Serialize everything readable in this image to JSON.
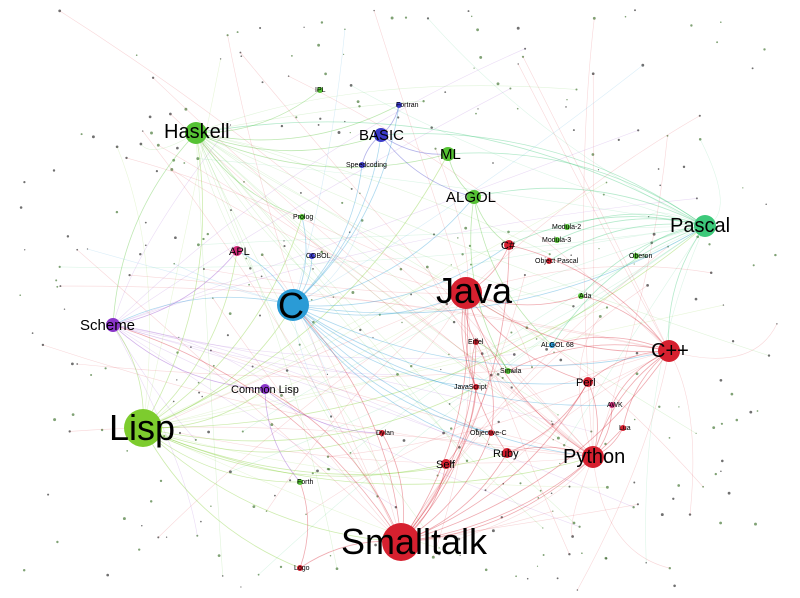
{
  "graph": {
    "type": "network",
    "nodes": [
      {
        "id": "lisp",
        "label": "Lisp",
        "size": "xl",
        "color": "#7dcc2e",
        "tier": 1
      },
      {
        "id": "smalltalk",
        "label": "Smalltalk",
        "size": "xl",
        "color": "#d6202f",
        "tier": 1
      },
      {
        "id": "c",
        "label": "C",
        "size": "l",
        "color": "#2a9bd6",
        "tier": 1
      },
      {
        "id": "java",
        "label": "Java",
        "size": "l",
        "color": "#d6202f",
        "tier": 1
      },
      {
        "id": "pascal",
        "label": "Pascal",
        "size": "m",
        "color": "#3dc97a",
        "tier": 2
      },
      {
        "id": "cpp",
        "label": "C++",
        "size": "m",
        "color": "#d6202f",
        "tier": 2
      },
      {
        "id": "haskell",
        "label": "Haskell",
        "size": "m",
        "color": "#55c234",
        "tier": 2
      },
      {
        "id": "python",
        "label": "Python",
        "size": "m",
        "color": "#d6202f",
        "tier": 2
      },
      {
        "id": "scheme",
        "label": "Scheme",
        "size": "s",
        "color": "#8a35c9",
        "tier": 3
      },
      {
        "id": "basic",
        "label": "BASIC",
        "size": "s",
        "color": "#3a3ac9",
        "tier": 3
      },
      {
        "id": "ml",
        "label": "ML",
        "size": "s",
        "color": "#55c234",
        "tier": 3
      },
      {
        "id": "algol",
        "label": "ALGOL",
        "size": "s",
        "color": "#55c234",
        "tier": 3
      },
      {
        "id": "csharp",
        "label": "C#",
        "size": "xs",
        "color": "#d6202f",
        "tier": 4
      },
      {
        "id": "apl",
        "label": "APL",
        "size": "xs",
        "color": "#d12a7a",
        "tier": 4
      },
      {
        "id": "perl",
        "label": "Perl",
        "size": "xs",
        "color": "#d6202f",
        "tier": 4
      },
      {
        "id": "commonlisp",
        "label": "Common Lisp",
        "size": "xs",
        "color": "#8a35c9",
        "tier": 4
      },
      {
        "id": "ruby",
        "label": "Ruby",
        "size": "xs",
        "color": "#d6202f",
        "tier": 4
      },
      {
        "id": "self",
        "label": "Self",
        "size": "xs",
        "color": "#d6202f",
        "tier": 4
      },
      {
        "id": "fortran",
        "label": "Fortran",
        "size": "xxs",
        "color": "#3a3ac9",
        "tier": 5
      },
      {
        "id": "javascript",
        "label": "JavaScript",
        "size": "xxs",
        "color": "#d6202f",
        "tier": 5
      },
      {
        "id": "objectivec",
        "label": "Objective-C",
        "size": "xxs",
        "color": "#d6202f",
        "tier": 5
      },
      {
        "id": "eiffel",
        "label": "Eiffel",
        "size": "xxs",
        "color": "#d6202f",
        "tier": 5
      },
      {
        "id": "ada",
        "label": "Ada",
        "size": "xxs",
        "color": "#55c234",
        "tier": 5
      },
      {
        "id": "prolog",
        "label": "Prolog",
        "size": "xxs",
        "color": "#55c234",
        "tier": 5
      },
      {
        "id": "forth",
        "label": "Forth",
        "size": "xxs",
        "color": "#55c234",
        "tier": 5
      },
      {
        "id": "logo",
        "label": "Logo",
        "size": "xxs",
        "color": "#d6202f",
        "tier": 5
      },
      {
        "id": "algol68",
        "label": "ALGOL 68",
        "size": "xxs",
        "color": "#2a9bd6",
        "tier": 5
      },
      {
        "id": "awk",
        "label": "AWK",
        "size": "xxs",
        "color": "#d12a7a",
        "tier": 5
      },
      {
        "id": "simula",
        "label": "Simula",
        "size": "xxs",
        "color": "#55c234",
        "tier": 5
      },
      {
        "id": "modula2",
        "label": "Modula-2",
        "size": "xxs",
        "color": "#55c234",
        "tier": 5
      },
      {
        "id": "modula3",
        "label": "Modula-3",
        "size": "xxs",
        "color": "#55c234",
        "tier": 5
      },
      {
        "id": "speedcoding",
        "label": "Speedcoding",
        "size": "xxs",
        "color": "#3a3ac9",
        "tier": 5
      },
      {
        "id": "objectpascal",
        "label": "Object Pascal",
        "size": "xxs",
        "color": "#d6202f",
        "tier": 5
      },
      {
        "id": "oberon",
        "label": "Oberon",
        "size": "xxs",
        "color": "#55c234",
        "tier": 5
      },
      {
        "id": "cobol",
        "label": "COBOL",
        "size": "xxs",
        "color": "#3a3ac9",
        "tier": 5
      },
      {
        "id": "dylan",
        "label": "Dylan",
        "size": "xxs",
        "color": "#d6202f",
        "tier": 5
      },
      {
        "id": "lua",
        "label": "Lua",
        "size": "xxs",
        "color": "#d6202f",
        "tier": 5
      },
      {
        "id": "ipl",
        "label": "IPL",
        "size": "xxs",
        "color": "#55c234",
        "tier": 5
      }
    ],
    "edges": [
      [
        "lisp",
        "scheme"
      ],
      [
        "lisp",
        "commonlisp"
      ],
      [
        "lisp",
        "smalltalk"
      ],
      [
        "lisp",
        "haskell"
      ],
      [
        "lisp",
        "ml"
      ],
      [
        "lisp",
        "c"
      ],
      [
        "lisp",
        "logo"
      ],
      [
        "lisp",
        "forth"
      ],
      [
        "lisp",
        "self"
      ],
      [
        "lisp",
        "python"
      ],
      [
        "lisp",
        "ruby"
      ],
      [
        "lisp",
        "javascript"
      ],
      [
        "lisp",
        "dylan"
      ],
      [
        "lisp",
        "apl"
      ],
      [
        "lisp",
        "prolog"
      ],
      [
        "lisp",
        "pascal"
      ],
      [
        "smalltalk",
        "java"
      ],
      [
        "smalltalk",
        "python"
      ],
      [
        "smalltalk",
        "ruby"
      ],
      [
        "smalltalk",
        "self"
      ],
      [
        "smalltalk",
        "objectivec"
      ],
      [
        "smalltalk",
        "cpp"
      ],
      [
        "smalltalk",
        "perl"
      ],
      [
        "smalltalk",
        "logo"
      ],
      [
        "smalltalk",
        "javascript"
      ],
      [
        "smalltalk",
        "eiffel"
      ],
      [
        "smalltalk",
        "c"
      ],
      [
        "smalltalk",
        "scheme"
      ],
      [
        "smalltalk",
        "csharp"
      ],
      [
        "smalltalk",
        "lua"
      ],
      [
        "smalltalk",
        "commonlisp"
      ],
      [
        "smalltalk",
        "dylan"
      ],
      [
        "c",
        "java"
      ],
      [
        "c",
        "cpp"
      ],
      [
        "c",
        "python"
      ],
      [
        "c",
        "perl"
      ],
      [
        "c",
        "csharp"
      ],
      [
        "c",
        "javascript"
      ],
      [
        "c",
        "objectivec"
      ],
      [
        "c",
        "basic"
      ],
      [
        "c",
        "algol"
      ],
      [
        "c",
        "awk"
      ],
      [
        "c",
        "pascal"
      ],
      [
        "c",
        "scheme"
      ],
      [
        "c",
        "apl"
      ],
      [
        "c",
        "prolog"
      ],
      [
        "c",
        "fortran"
      ],
      [
        "c",
        "cobol"
      ],
      [
        "c",
        "ruby"
      ],
      [
        "c",
        "speedcoding"
      ],
      [
        "java",
        "cpp"
      ],
      [
        "java",
        "csharp"
      ],
      [
        "java",
        "python"
      ],
      [
        "java",
        "javascript"
      ],
      [
        "java",
        "ruby"
      ],
      [
        "java",
        "ada"
      ],
      [
        "java",
        "eiffel"
      ],
      [
        "java",
        "perl"
      ],
      [
        "pascal",
        "algol"
      ],
      [
        "pascal",
        "modula2"
      ],
      [
        "pascal",
        "modula3"
      ],
      [
        "pascal",
        "ada"
      ],
      [
        "pascal",
        "oberon"
      ],
      [
        "pascal",
        "objectpascal"
      ],
      [
        "pascal",
        "csharp"
      ],
      [
        "pascal",
        "ml"
      ],
      [
        "pascal",
        "algol68"
      ],
      [
        "pascal",
        "cpp"
      ],
      [
        "pascal",
        "haskell"
      ],
      [
        "pascal",
        "basic"
      ],
      [
        "cpp",
        "perl"
      ],
      [
        "cpp",
        "python"
      ],
      [
        "cpp",
        "csharp"
      ],
      [
        "cpp",
        "ada"
      ],
      [
        "cpp",
        "awk"
      ],
      [
        "cpp",
        "algol68"
      ],
      [
        "cpp",
        "simula"
      ],
      [
        "cpp",
        "lua"
      ],
      [
        "haskell",
        "ml"
      ],
      [
        "haskell",
        "scheme"
      ],
      [
        "haskell",
        "basic"
      ],
      [
        "haskell",
        "fortran"
      ],
      [
        "haskell",
        "prolog"
      ],
      [
        "haskell",
        "ipl"
      ],
      [
        "python",
        "perl"
      ],
      [
        "python",
        "ruby"
      ],
      [
        "python",
        "awk"
      ],
      [
        "python",
        "lua"
      ],
      [
        "basic",
        "fortran"
      ],
      [
        "basic",
        "speedcoding"
      ],
      [
        "basic",
        "algol"
      ],
      [
        "basic",
        "ml"
      ],
      [
        "ml",
        "algol"
      ],
      [
        "algol",
        "algol68"
      ],
      [
        "algol",
        "simula"
      ],
      [
        "algol",
        "csharp"
      ],
      [
        "scheme",
        "commonlisp"
      ],
      [
        "scheme",
        "apl"
      ],
      [
        "commonlisp",
        "dylan"
      ],
      [
        "commonlisp",
        "forth"
      ],
      [
        "self",
        "javascript"
      ],
      [
        "ruby",
        "perl"
      ],
      [
        "objectivec",
        "eiffel"
      ],
      [
        "simula",
        "eiffel"
      ],
      [
        "eiffel",
        "javascript"
      ],
      [
        "logo",
        "forth"
      ]
    ]
  }
}
